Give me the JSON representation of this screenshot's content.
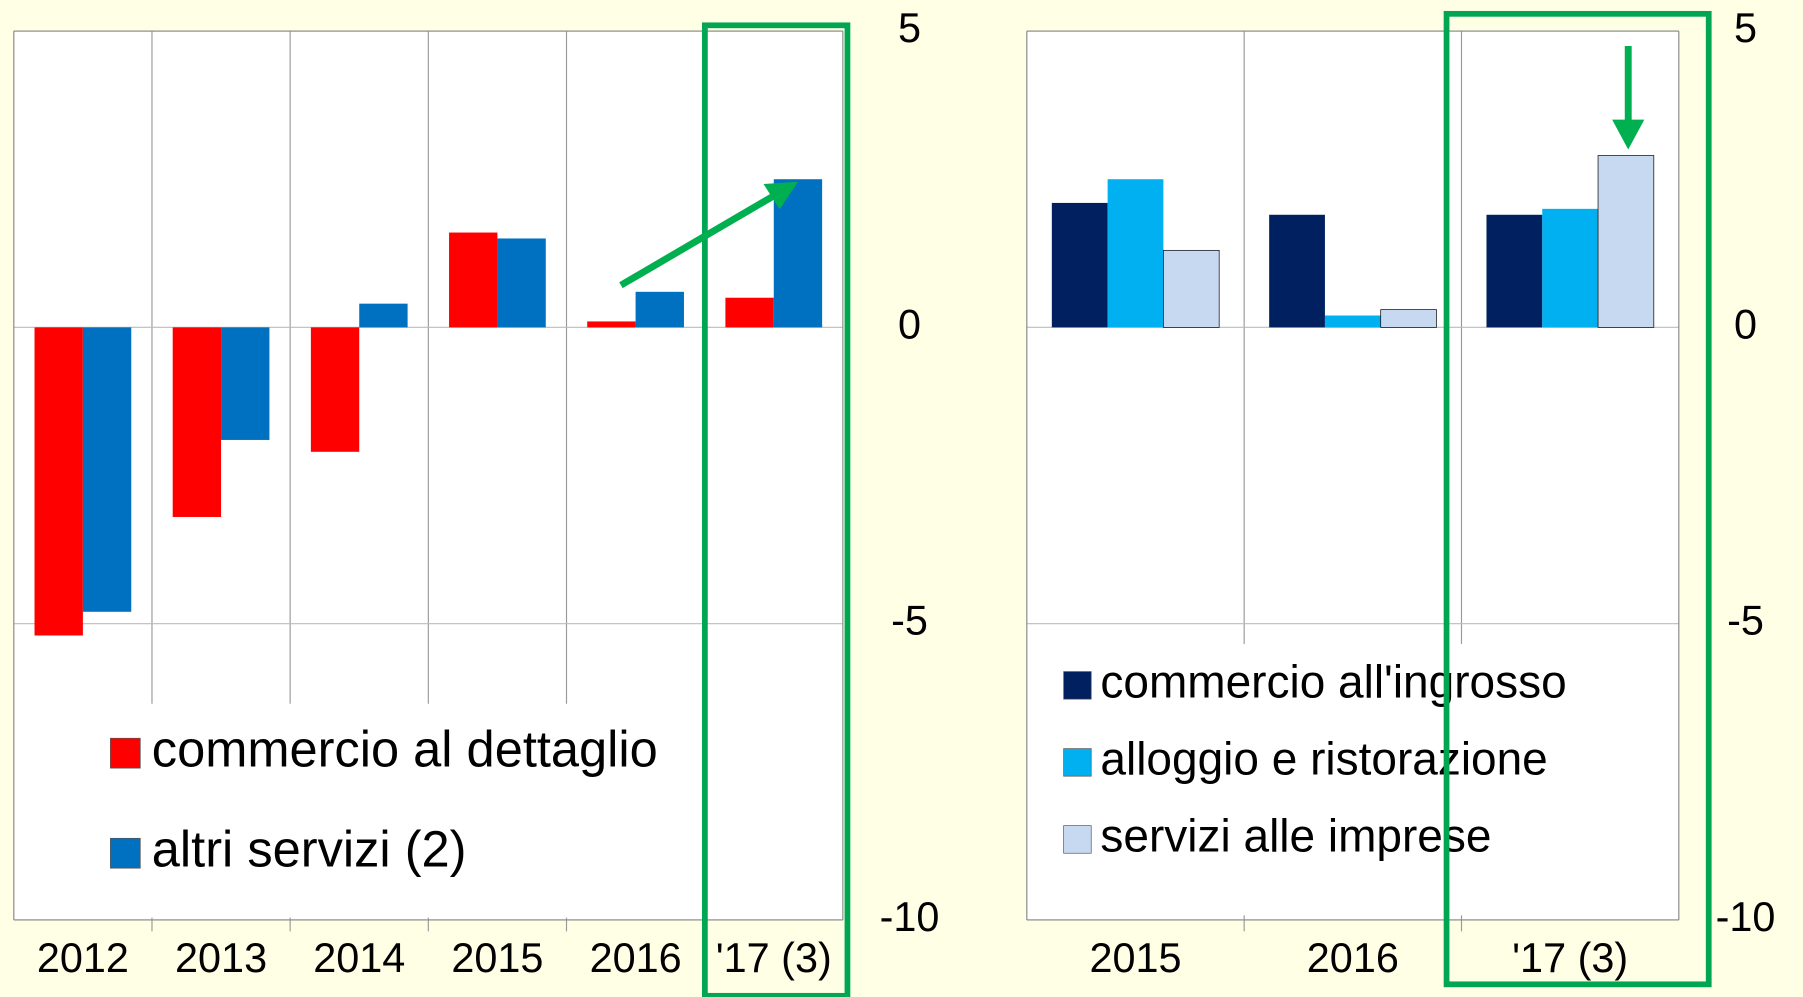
{
  "chart_data": [
    {
      "type": "bar",
      "categories": [
        "2012",
        "2013",
        "2014",
        "2015",
        "2016",
        "'17 (3)"
      ],
      "series": [
        {
          "name": "commercio al dettaglio",
          "color": "#ff0000",
          "values": [
            -5.2,
            -3.2,
            -2.1,
            1.6,
            0.1,
            0.5
          ]
        },
        {
          "name": "altri servizi (2)",
          "color": "#0070c0",
          "values": [
            -4.8,
            -1.9,
            0.4,
            1.5,
            0.6,
            2.5
          ]
        }
      ],
      "ylim": [
        -10,
        5
      ],
      "yticks": [
        -10,
        -5,
        0,
        5
      ],
      "grid": true,
      "legend": "lower left"
    },
    {
      "type": "bar",
      "categories": [
        "2015",
        "2016",
        "'17 (3)"
      ],
      "series": [
        {
          "name": "commercio all'ingrosso",
          "color": "#002060",
          "values": [
            2.1,
            1.9,
            1.9
          ]
        },
        {
          "name": "alloggio e ristorazione",
          "color": "#00b0f0",
          "values": [
            2.5,
            0.2,
            2.0
          ]
        },
        {
          "name": "servizi alle imprese",
          "color": "#c6d9f1",
          "values": [
            1.3,
            0.3,
            2.9
          ]
        }
      ],
      "ylim": [
        -10,
        5
      ],
      "yticks": [
        -10,
        -5,
        0,
        5
      ],
      "grid": true,
      "legend": "lower left"
    }
  ]
}
